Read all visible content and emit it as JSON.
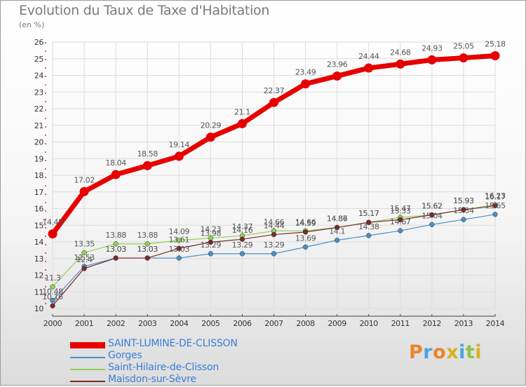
{
  "title": "Evolution du Taux de Taxe d'Habitation",
  "subtitle": "(en %)",
  "logo": [
    "P",
    "r",
    "o",
    "x",
    "i",
    "t",
    "i"
  ],
  "logo_colors": [
    "#e9842a",
    "#4aa3df",
    "#e9842a",
    "#d8b11e",
    "#4aa3df",
    "#8bc34a",
    "#d8b11e"
  ],
  "chart_data": {
    "type": "line",
    "x": [
      "2000",
      "2001",
      "2002",
      "2003",
      "2004",
      "2005",
      "2006",
      "2007",
      "2008",
      "2009",
      "2010",
      "2011",
      "2012",
      "2013",
      "2014"
    ],
    "ylim": [
      10,
      26
    ],
    "yticks": [
      "10",
      "11",
      "12",
      "13",
      "14",
      "15",
      "16",
      "17",
      "18",
      "19",
      "20",
      "21",
      "22",
      "23",
      "24",
      "25",
      "26"
    ],
    "grid": true,
    "legend_position": "bottom-left",
    "series": [
      {
        "name": "SAINT-LUMINE-DE-CLISSON",
        "color": "#e60000",
        "values": [
          14.48,
          17.02,
          18.04,
          18.58,
          19.14,
          20.29,
          21.1,
          22.37,
          23.49,
          23.96,
          24.44,
          24.68,
          24.93,
          25.05,
          25.18
        ],
        "labels": [
          "14.48",
          "17.02",
          "18.04",
          "18.58",
          "19.14",
          "20.29",
          "21.1",
          "22.37",
          "23.49",
          "23.96",
          "24.44",
          "24.68",
          "24.93",
          "25.05",
          "25.18"
        ]
      },
      {
        "name": "Gorges",
        "color": "#4a90c8",
        "values": [
          10.48,
          12.53,
          13.03,
          13.03,
          13.03,
          13.29,
          13.29,
          13.29,
          13.69,
          14.1,
          14.38,
          14.67,
          15.04,
          15.34,
          15.65
        ],
        "labels": [
          "10.48",
          "12.53",
          "13.03",
          "13.03",
          "13.03",
          "13.29",
          "13.29",
          "13.29",
          "13.69",
          "14.1",
          "14.38",
          "14.67",
          "15.04",
          "15.34",
          "15.65"
        ]
      },
      {
        "name": "Saint-Hilaire-de-Clisson",
        "color": "#8fd14f",
        "values": [
          11.3,
          13.35,
          13.88,
          13.88,
          14.09,
          14.23,
          14.37,
          14.66,
          14.66,
          14.87,
          15.17,
          15.47,
          15.62,
          15.93,
          16.23
        ],
        "labels": [
          "11.3",
          "13.35",
          "13.88",
          "13.88",
          "14.09",
          "14.23",
          "14.37",
          "14.66",
          "14.66",
          "14.87",
          "15.17",
          "15.47",
          "15.62",
          "15.93",
          "16.23"
        ]
      },
      {
        "name": "Maisdon-sur-Sèvre",
        "color": "#7a2a2a",
        "values": [
          10.16,
          12.4,
          13.03,
          13.03,
          13.61,
          13.98,
          14.16,
          14.44,
          14.59,
          14.86,
          15.17,
          15.33,
          15.62,
          15.93,
          16.17
        ],
        "labels": [
          "10.16",
          "12.4",
          "13.03",
          "13.03",
          "13.61",
          "13.98",
          "14.16",
          "14.44",
          "14.59",
          "14.86",
          "15.17",
          "15.33",
          "15.62",
          "15.93",
          "16.17"
        ]
      }
    ]
  }
}
